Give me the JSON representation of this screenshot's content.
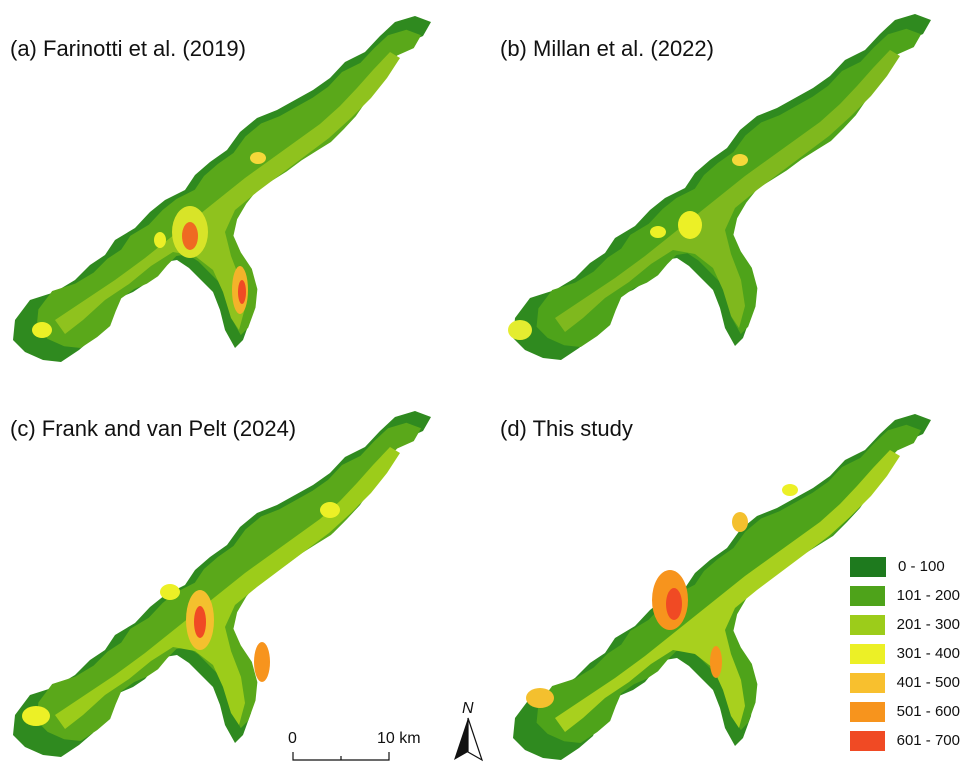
{
  "panels": [
    {
      "id": "a",
      "title": "(a) Farinotti et al. (2019)"
    },
    {
      "id": "b",
      "title": "(b) Millan et al. (2022)"
    },
    {
      "id": "c",
      "title": "(c) Frank and van Pelt (2024)"
    },
    {
      "id": "d",
      "title": "(d) This study"
    }
  ],
  "legend": {
    "items": [
      {
        "label": "0 - 100",
        "color": "#1e7a1e"
      },
      {
        "label": "101 - 200",
        "color": "#4ea31a"
      },
      {
        "label": "201 - 300",
        "color": "#9ccc1a"
      },
      {
        "label": "301 - 400",
        "color": "#ecf026"
      },
      {
        "label": "401 - 500",
        "color": "#f8c02e"
      },
      {
        "label": "501 - 600",
        "color": "#f7941d"
      },
      {
        "label": "601 - 700",
        "color": "#f04a24"
      }
    ]
  },
  "scalebar": {
    "start_label": "0",
    "end_label": "10 km"
  },
  "north_arrow": {
    "label": "N"
  }
}
